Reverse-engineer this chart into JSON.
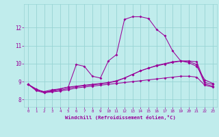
{
  "xlabel": "Windchill (Refroidissement éolien,°C)",
  "bg_color": "#c0ecec",
  "grid_color": "#98d4d4",
  "line_color": "#990099",
  "x_ticks": [
    0,
    1,
    2,
    3,
    4,
    5,
    6,
    7,
    8,
    9,
    10,
    11,
    12,
    13,
    14,
    15,
    16,
    17,
    18,
    19,
    20,
    21,
    22,
    23
  ],
  "y_ticks": [
    8,
    9,
    10,
    11,
    12
  ],
  "ylim": [
    7.6,
    13.3
  ],
  "xlim": [
    -0.5,
    23.5
  ],
  "line1_x": [
    0,
    1,
    2,
    3,
    4,
    5,
    6,
    7,
    8,
    9,
    10,
    11,
    12,
    13,
    14,
    15,
    16,
    17,
    18,
    19,
    20,
    21,
    22,
    23
  ],
  "line1_y": [
    8.85,
    8.6,
    8.4,
    8.5,
    8.6,
    8.7,
    9.95,
    9.85,
    9.3,
    9.2,
    10.15,
    10.5,
    12.45,
    12.6,
    12.6,
    12.5,
    11.9,
    11.55,
    10.7,
    10.15,
    10.05,
    9.85,
    9.1,
    8.9
  ],
  "line2_x": [
    0,
    1,
    2,
    3,
    4,
    5,
    6,
    7,
    8,
    9,
    10,
    11,
    12,
    13,
    14,
    15,
    16,
    17,
    18,
    19,
    20,
    21,
    22,
    23
  ],
  "line2_y": [
    8.85,
    8.55,
    8.45,
    8.55,
    8.6,
    8.7,
    8.75,
    8.8,
    8.85,
    8.9,
    8.95,
    9.05,
    9.2,
    9.4,
    9.6,
    9.75,
    9.9,
    10.0,
    10.1,
    10.15,
    10.15,
    10.1,
    8.95,
    8.85
  ],
  "line3_x": [
    0,
    1,
    2,
    3,
    4,
    5,
    6,
    7,
    8,
    9,
    10,
    11,
    12,
    13,
    14,
    15,
    16,
    17,
    18,
    19,
    20,
    21,
    22,
    23
  ],
  "line3_y": [
    8.85,
    8.5,
    8.38,
    8.43,
    8.48,
    8.55,
    8.65,
    8.7,
    8.75,
    8.8,
    8.85,
    8.9,
    8.95,
    9.0,
    9.05,
    9.1,
    9.15,
    9.2,
    9.25,
    9.3,
    9.3,
    9.25,
    8.8,
    8.7
  ],
  "line4_x": [
    0,
    1,
    2,
    3,
    4,
    5,
    6,
    7,
    8,
    9,
    10,
    11,
    12,
    13,
    14,
    15,
    16,
    17,
    18,
    19,
    20,
    21,
    22,
    23
  ],
  "line4_y": [
    8.85,
    8.55,
    8.42,
    8.47,
    8.53,
    8.62,
    8.72,
    8.77,
    8.82,
    8.87,
    8.93,
    9.02,
    9.2,
    9.4,
    9.6,
    9.75,
    9.87,
    9.97,
    10.07,
    10.13,
    10.12,
    9.95,
    8.87,
    8.75
  ]
}
